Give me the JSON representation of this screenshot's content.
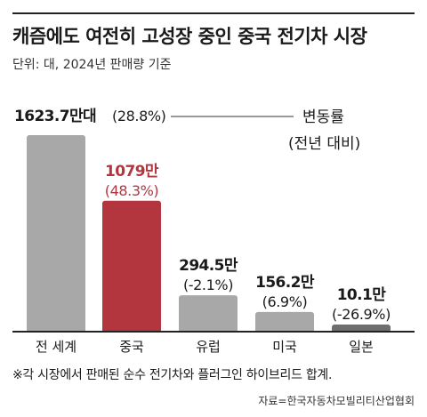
{
  "header": {
    "title": "캐즘에도 여전히 고성장 중인 중국 전기차 시장",
    "subtitle": "단위: 대, 2024년 판매량 기준"
  },
  "legend": {
    "line1": "변동률",
    "line2": "(전년 대비)"
  },
  "colors": {
    "gray_bar": "#a8a8a8",
    "china_bar": "#b3363f",
    "korea_bar": "#6e6e6e",
    "china_text": "#b3363f"
  },
  "chart_data": {
    "type": "bar",
    "categories": [
      "전 세계",
      "중국",
      "유럽",
      "미국",
      "일본"
    ],
    "values": [
      16237000,
      10790000,
      2945000,
      1562000,
      101000
    ],
    "value_labels": [
      "1623.7만대",
      "1079만",
      "294.5만",
      "156.2만",
      "10.1만"
    ],
    "change_labels": [
      "(28.8%)",
      "(48.3%)",
      "(-2.1%)",
      "(6.9%)",
      "(-26.9%)"
    ],
    "highlight": "중국"
  },
  "footer": {
    "note": "※각 시장에서 판매된 순수 전기차와 플러그인 하이브리드 합계.",
    "source": "자료=한국자동차모빌리티산업협회"
  }
}
